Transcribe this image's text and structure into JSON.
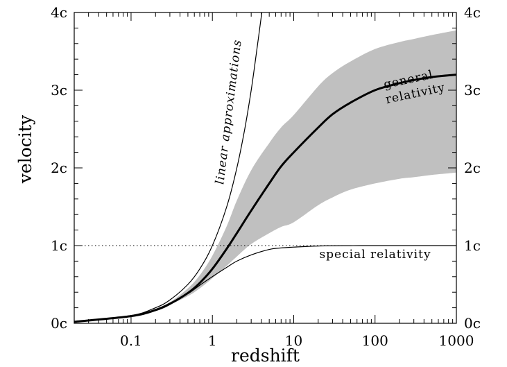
{
  "chart_data": {
    "type": "line",
    "title": "",
    "xlabel": "redshift",
    "ylabel": "velocity",
    "x_scale": "log",
    "xlim": [
      0.02,
      1000
    ],
    "ylim": [
      0,
      4
    ],
    "x_ticks": [
      {
        "value": 0.1,
        "label": "0.1"
      },
      {
        "value": 1,
        "label": "1"
      },
      {
        "value": 10,
        "label": "10"
      },
      {
        "value": 100,
        "label": "100"
      },
      {
        "value": 1000,
        "label": "1000"
      }
    ],
    "y_ticks_left": [
      {
        "value": 0,
        "label": "0c"
      },
      {
        "value": 1,
        "label": "1c"
      },
      {
        "value": 2,
        "label": "2c"
      },
      {
        "value": 3,
        "label": "3c"
      },
      {
        "value": 4,
        "label": "4c"
      }
    ],
    "y_ticks_right": [
      {
        "value": 0,
        "label": "0c"
      },
      {
        "value": 1,
        "label": "1c"
      },
      {
        "value": 2,
        "label": "2c"
      },
      {
        "value": 3,
        "label": "3c"
      },
      {
        "value": 4,
        "label": "4c"
      }
    ],
    "reference_line": {
      "name": "speed of light",
      "y": 1,
      "style": "dotted"
    },
    "band": {
      "name": "general relativity range",
      "color": "#c0c0c0",
      "x": [
        0.02,
        0.1,
        0.2,
        0.3,
        0.5,
        0.7,
        1,
        1.5,
        2,
        3,
        5,
        7,
        10,
        20,
        30,
        50,
        100,
        200,
        300,
        500,
        1000
      ],
      "upper": [
        0.02,
        0.095,
        0.18,
        0.27,
        0.45,
        0.62,
        0.87,
        1.25,
        1.58,
        1.97,
        2.32,
        2.52,
        2.68,
        3.05,
        3.22,
        3.37,
        3.53,
        3.62,
        3.66,
        3.71,
        3.77
      ],
      "lower": [
        0.02,
        0.09,
        0.17,
        0.24,
        0.35,
        0.45,
        0.58,
        0.74,
        0.86,
        1.02,
        1.16,
        1.24,
        1.3,
        1.52,
        1.62,
        1.72,
        1.8,
        1.86,
        1.88,
        1.91,
        1.94
      ]
    },
    "series": [
      {
        "name": "general relativity",
        "label_lines": [
          "general",
          "relativity"
        ],
        "style": "thick",
        "x": [
          0.02,
          0.1,
          0.2,
          0.3,
          0.5,
          0.7,
          1,
          1.5,
          2,
          3,
          5,
          7,
          10,
          20,
          30,
          50,
          100,
          200,
          300,
          500,
          1000
        ],
        "y": [
          0.02,
          0.093,
          0.17,
          0.25,
          0.39,
          0.52,
          0.7,
          0.96,
          1.16,
          1.45,
          1.8,
          2.02,
          2.2,
          2.52,
          2.69,
          2.84,
          3.0,
          3.09,
          3.13,
          3.17,
          3.2
        ]
      },
      {
        "name": "special relativity",
        "label_lines": [
          "special relativity"
        ],
        "style": "thin",
        "x": [
          0.02,
          0.1,
          0.2,
          0.3,
          0.5,
          0.7,
          1,
          1.5,
          2,
          3,
          5,
          7,
          10,
          20,
          50,
          100,
          300,
          1000
        ],
        "y": [
          0.02,
          0.095,
          0.18,
          0.26,
          0.38,
          0.49,
          0.6,
          0.72,
          0.8,
          0.88,
          0.95,
          0.97,
          0.98,
          0.995,
          0.999,
          1.0,
          1.0,
          1.0
        ]
      },
      {
        "name": "linear approximations",
        "label_lines": [
          "linear approximations"
        ],
        "style": "thin",
        "x": [
          0.02,
          0.1,
          0.2,
          0.3,
          0.5,
          0.7,
          1,
          1.5,
          2,
          2.5,
          3,
          3.5,
          4.05
        ],
        "y": [
          0.02,
          0.1,
          0.2,
          0.3,
          0.5,
          0.7,
          1.0,
          1.5,
          2.0,
          2.5,
          3.0,
          3.5,
          4.0
        ]
      }
    ]
  }
}
